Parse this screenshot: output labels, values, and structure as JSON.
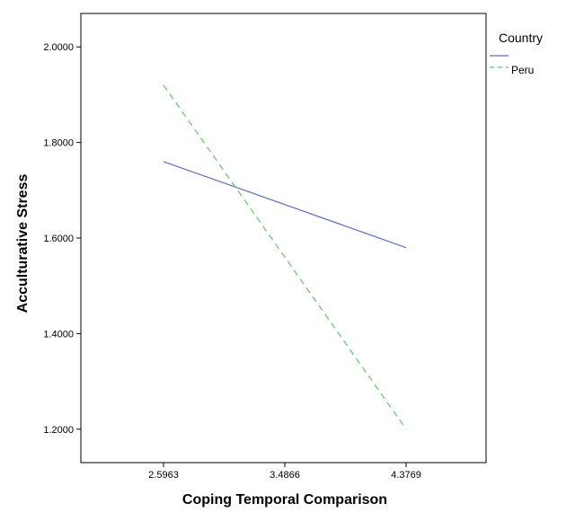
{
  "chart_data": {
    "type": "line",
    "xlabel": "Coping Temporal Comparison",
    "ylabel": "Acculturative Stress",
    "categories": [
      "2.5963",
      "3.4866",
      "4.3769"
    ],
    "yticks": [
      "1.2000",
      "1.4000",
      "1.6000",
      "1.8000",
      "2.0000"
    ],
    "ylim": [
      1.13,
      2.07
    ],
    "grid": false,
    "legend": {
      "title": "Country",
      "placement": "right"
    },
    "series": [
      {
        "name": "",
        "color": "#5b6fc4",
        "dash": "solid",
        "values": [
          1.76,
          null,
          1.58
        ]
      },
      {
        "name": "Peru",
        "color": "#5fc75f",
        "dash": "dashed",
        "values": [
          1.92,
          null,
          1.2
        ]
      }
    ]
  }
}
